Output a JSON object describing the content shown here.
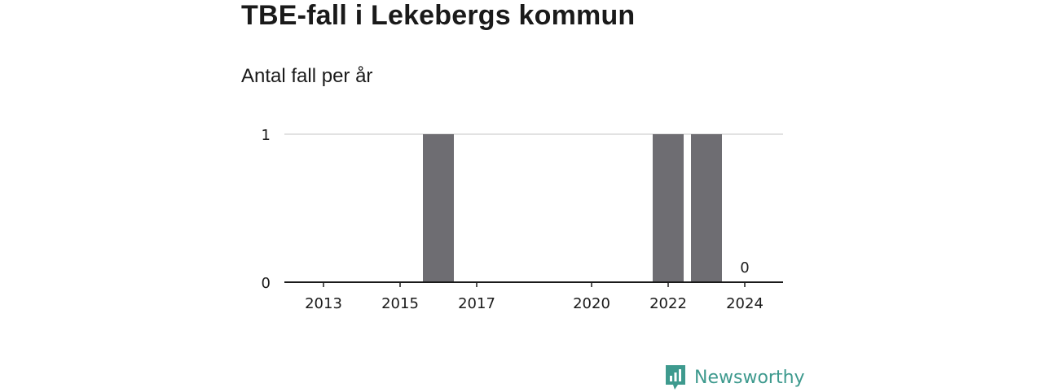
{
  "title": "TBE-fall i Lekebergs kommun",
  "subtitle": "Antal fall per år",
  "brand": {
    "name": "Newsworthy",
    "color": "#3e9a8e",
    "icon": "newsworthy-logo-icon"
  },
  "chart_data": {
    "type": "bar",
    "categories": [
      "2013",
      "2014",
      "2015",
      "2016",
      "2017",
      "2018",
      "2019",
      "2020",
      "2021",
      "2022",
      "2023",
      "2024"
    ],
    "x_tick_labels": [
      "2013",
      "2015",
      "2017",
      "2020",
      "2022",
      "2024"
    ],
    "values": [
      0,
      0,
      0,
      1,
      0,
      0,
      0,
      0,
      0,
      1,
      1,
      0
    ],
    "annotations": [
      {
        "category": "2024",
        "text": "0"
      }
    ],
    "yticks": [
      0,
      1
    ],
    "ylim": [
      0,
      1
    ],
    "grid": true,
    "bar_color": "#6e6d72",
    "grid_color": "#d9d9d9",
    "axis_color": "#1a1a1a"
  }
}
